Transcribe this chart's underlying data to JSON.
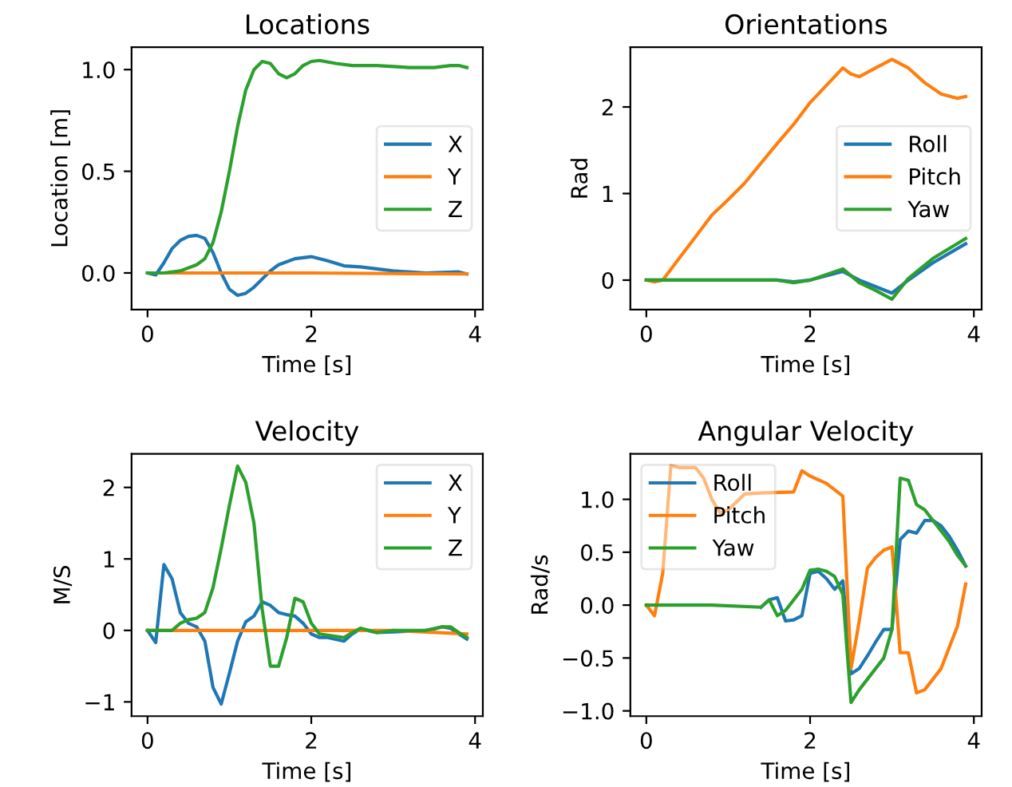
{
  "chart_data": [
    {
      "type": "line",
      "title": "Locations",
      "xlabel": "Time [s]",
      "ylabel": "Location [m]",
      "xlim": [
        -0.195,
        4.095
      ],
      "xticks": [
        0,
        2,
        4
      ],
      "ylim": [
        -0.18,
        1.11
      ],
      "yticks": [
        {
          "value": 0,
          "label": "0.0"
        },
        {
          "value": 0.5,
          "label": "0.5"
        },
        {
          "value": 1,
          "label": "1.0"
        }
      ],
      "legend": "center right",
      "grid": false,
      "series": [
        {
          "name": "X",
          "color": "#1f77b4",
          "x": [
            0,
            0.1,
            0.2,
            0.3,
            0.4,
            0.5,
            0.6,
            0.7,
            0.8,
            0.9,
            1.0,
            1.1,
            1.2,
            1.3,
            1.4,
            1.5,
            1.6,
            1.8,
            2.0,
            2.2,
            2.4,
            2.6,
            2.8,
            3.0,
            3.4,
            3.8,
            3.9
          ],
          "values": [
            0,
            -0.01,
            0.05,
            0.12,
            0.16,
            0.18,
            0.185,
            0.17,
            0.1,
            0.0,
            -0.08,
            -0.11,
            -0.1,
            -0.07,
            -0.03,
            0.01,
            0.04,
            0.07,
            0.08,
            0.06,
            0.035,
            0.03,
            0.02,
            0.01,
            0.0,
            0.005,
            -0.005
          ]
        },
        {
          "name": "Y",
          "color": "#ff7f0e",
          "x": [
            0,
            1,
            2,
            3,
            3.9
          ],
          "values": [
            0,
            0,
            0,
            -0.003,
            -0.005
          ]
        },
        {
          "name": "Z",
          "color": "#2ca02c",
          "x": [
            0,
            0.2,
            0.4,
            0.6,
            0.7,
            0.8,
            0.9,
            1.0,
            1.1,
            1.2,
            1.3,
            1.4,
            1.5,
            1.6,
            1.7,
            1.8,
            1.9,
            2.0,
            2.1,
            2.3,
            2.5,
            2.8,
            3.2,
            3.5,
            3.7,
            3.8,
            3.9
          ],
          "values": [
            0,
            0,
            0.01,
            0.04,
            0.07,
            0.15,
            0.3,
            0.5,
            0.72,
            0.9,
            1.0,
            1.04,
            1.03,
            0.98,
            0.96,
            0.98,
            1.02,
            1.04,
            1.045,
            1.03,
            1.02,
            1.02,
            1.01,
            1.01,
            1.02,
            1.02,
            1.01
          ]
        }
      ]
    },
    {
      "type": "line",
      "title": "Orientations",
      "xlabel": "Time [s]",
      "ylabel": "Rad",
      "xlim": [
        -0.195,
        4.095
      ],
      "xticks": [
        0,
        2,
        4
      ],
      "ylim": [
        -0.34,
        2.69
      ],
      "yticks": [
        0,
        1,
        2
      ],
      "legend": "center right",
      "grid": false,
      "series": [
        {
          "name": "Roll",
          "color": "#1f77b4",
          "x": [
            0,
            1.6,
            1.8,
            2.0,
            2.4,
            2.6,
            3.0,
            3.2,
            3.5,
            3.9
          ],
          "values": [
            0,
            0,
            -0.02,
            0.0,
            0.1,
            0.0,
            -0.15,
            0.0,
            0.2,
            0.42
          ]
        },
        {
          "name": "Pitch",
          "color": "#ff7f0e",
          "x": [
            0,
            0.1,
            0.2,
            0.4,
            0.6,
            0.8,
            1.0,
            1.2,
            1.4,
            1.6,
            1.8,
            2.0,
            2.2,
            2.4,
            2.5,
            2.6,
            2.8,
            3.0,
            3.2,
            3.4,
            3.6,
            3.8,
            3.9
          ],
          "values": [
            0,
            -0.02,
            0.0,
            0.25,
            0.5,
            0.75,
            0.93,
            1.12,
            1.35,
            1.58,
            1.8,
            2.05,
            2.25,
            2.45,
            2.38,
            2.35,
            2.45,
            2.55,
            2.45,
            2.28,
            2.15,
            2.1,
            2.12
          ]
        },
        {
          "name": "Yaw",
          "color": "#2ca02c",
          "x": [
            0,
            1.6,
            1.8,
            2.0,
            2.4,
            2.6,
            2.8,
            3.0,
            3.2,
            3.5,
            3.9
          ],
          "values": [
            0,
            0,
            -0.03,
            0,
            0.13,
            -0.03,
            -0.12,
            -0.22,
            0.02,
            0.25,
            0.48
          ]
        }
      ]
    },
    {
      "type": "line",
      "title": "Velocity",
      "xlabel": "Time [s]",
      "ylabel": "M/S",
      "xlim": [
        -0.195,
        4.095
      ],
      "xticks": [
        0,
        2,
        4
      ],
      "ylim": [
        -1.2,
        2.47
      ],
      "yticks": [
        {
          "value": -1,
          "label": "−1"
        },
        0,
        1,
        2
      ],
      "legend": "top right",
      "grid": false,
      "series": [
        {
          "name": "X",
          "color": "#1f77b4",
          "x": [
            0,
            0.1,
            0.2,
            0.3,
            0.4,
            0.5,
            0.6,
            0.7,
            0.8,
            0.9,
            1.0,
            1.1,
            1.2,
            1.3,
            1.4,
            1.5,
            1.6,
            1.7,
            1.8,
            1.9,
            2.0,
            2.1,
            2.2,
            2.4,
            2.5,
            2.6,
            2.8,
            3.0,
            3.4,
            3.5,
            3.6,
            3.7,
            3.8,
            3.9
          ],
          "values": [
            0,
            -0.17,
            0.92,
            0.72,
            0.25,
            0.1,
            0.05,
            -0.15,
            -0.8,
            -1.03,
            -0.6,
            -0.15,
            0.12,
            0.2,
            0.4,
            0.35,
            0.25,
            0.22,
            0.2,
            0.1,
            -0.05,
            -0.1,
            -0.1,
            -0.15,
            -0.05,
            0.02,
            -0.03,
            -0.02,
            0.0,
            0.02,
            0.05,
            0.03,
            -0.05,
            -0.12
          ]
        },
        {
          "name": "Y",
          "color": "#ff7f0e",
          "x": [
            0,
            1,
            2,
            3,
            3.9
          ],
          "values": [
            0,
            0,
            0,
            0,
            -0.05
          ]
        },
        {
          "name": "Z",
          "color": "#2ca02c",
          "x": [
            0,
            0.3,
            0.4,
            0.5,
            0.6,
            0.7,
            0.8,
            0.9,
            1.0,
            1.1,
            1.2,
            1.3,
            1.4,
            1.5,
            1.6,
            1.7,
            1.8,
            1.9,
            2.0,
            2.1,
            2.4,
            2.5,
            2.6,
            2.8,
            3.0,
            3.4,
            3.6,
            3.7,
            3.8,
            3.9
          ],
          "values": [
            0,
            0,
            0.1,
            0.15,
            0.17,
            0.25,
            0.6,
            1.15,
            1.75,
            2.3,
            2.07,
            1.5,
            0.3,
            -0.5,
            -0.5,
            -0.1,
            0.45,
            0.4,
            0.1,
            -0.05,
            -0.1,
            -0.03,
            0.03,
            -0.03,
            0.0,
            0.0,
            0.05,
            0.05,
            -0.03,
            -0.1
          ]
        }
      ]
    },
    {
      "type": "line",
      "title": "Angular Velocity",
      "xlabel": "Time [s]",
      "ylabel": "Rad/s",
      "xlim": [
        -0.195,
        4.095
      ],
      "xticks": [
        0,
        2,
        4
      ],
      "ylim": [
        -1.05,
        1.43
      ],
      "yticks": [
        {
          "value": -1,
          "label": "−1.0"
        },
        {
          "value": -0.5,
          "label": "−0.5"
        },
        {
          "value": 0,
          "label": "0.0"
        },
        {
          "value": 0.5,
          "label": "0.5"
        },
        {
          "value": 1,
          "label": "1.0"
        }
      ],
      "legend": "top left",
      "grid": false,
      "series": [
        {
          "name": "Roll",
          "color": "#1f77b4",
          "x": [
            1.4,
            1.5,
            1.6,
            1.7,
            1.8,
            1.9,
            2.0,
            2.1,
            2.2,
            2.3,
            2.4,
            2.5,
            2.6,
            2.7,
            2.8,
            2.9,
            3.0,
            3.1,
            3.2,
            3.3,
            3.4,
            3.5,
            3.6,
            3.7,
            3.8,
            3.9
          ],
          "values": [
            -0.02,
            0.05,
            0.07,
            -0.15,
            -0.14,
            -0.1,
            0.3,
            0.32,
            0.25,
            0.15,
            0.23,
            -0.65,
            -0.6,
            -0.48,
            -0.35,
            -0.23,
            -0.23,
            0.62,
            0.7,
            0.68,
            0.8,
            0.8,
            0.75,
            0.65,
            0.52,
            0.37
          ]
        },
        {
          "name": "Pitch",
          "color": "#ff7f0e",
          "x": [
            0,
            0.1,
            0.2,
            0.3,
            0.4,
            0.6,
            0.7,
            0.8,
            0.9,
            1.0,
            1.2,
            1.4,
            1.8,
            1.9,
            2.0,
            2.2,
            2.4,
            2.5,
            2.6,
            2.7,
            2.8,
            2.9,
            3.0,
            3.1,
            3.2,
            3.3,
            3.4,
            3.6,
            3.8,
            3.9
          ],
          "values": [
            0,
            -0.1,
            0.3,
            1.32,
            1.3,
            1.3,
            1.2,
            1.0,
            0.87,
            0.9,
            1.05,
            1.06,
            1.07,
            1.27,
            1.22,
            1.15,
            1.03,
            -0.6,
            -0.15,
            0.35,
            0.45,
            0.52,
            0.55,
            -0.45,
            -0.45,
            -0.83,
            -0.8,
            -0.6,
            -0.2,
            0.2
          ]
        },
        {
          "name": "Yaw",
          "color": "#2ca02c",
          "x": [
            0,
            0.8,
            1.4,
            1.5,
            1.6,
            1.7,
            1.8,
            1.9,
            2.0,
            2.1,
            2.2,
            2.3,
            2.4,
            2.5,
            2.6,
            2.7,
            2.8,
            2.9,
            3.0,
            3.1,
            3.2,
            3.3,
            3.4,
            3.5,
            3.6,
            3.7,
            3.8,
            3.9
          ],
          "values": [
            0,
            0,
            -0.02,
            0.05,
            -0.1,
            -0.05,
            0.05,
            0.15,
            0.33,
            0.34,
            0.32,
            0.27,
            0.1,
            -0.92,
            -0.8,
            -0.7,
            -0.6,
            -0.5,
            -0.23,
            1.2,
            1.18,
            0.95,
            0.9,
            0.8,
            0.7,
            0.6,
            0.47,
            0.37
          ]
        }
      ]
    }
  ]
}
